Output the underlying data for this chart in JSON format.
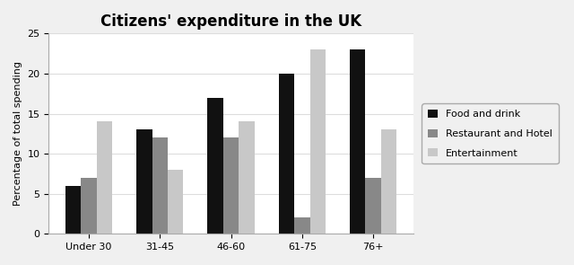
{
  "title": "Citizens' expenditure in the UK",
  "ylabel": "Percentage of total spending",
  "categories": [
    "Under 30",
    "31-45",
    "46-60",
    "61-75",
    "76+"
  ],
  "series": [
    {
      "label": "Food and drink",
      "values": [
        6,
        13,
        17,
        20,
        23
      ],
      "color": "#111111"
    },
    {
      "label": "Restaurant and Hotel",
      "values": [
        7,
        12,
        12,
        2,
        7
      ],
      "color": "#888888"
    },
    {
      "label": "Entertainment",
      "values": [
        14,
        8,
        14,
        23,
        13
      ],
      "color": "#c8c8c8"
    }
  ],
  "ylim": [
    0,
    25
  ],
  "yticks": [
    0,
    5,
    10,
    15,
    20,
    25
  ],
  "bar_width": 0.22,
  "background_color": "#f0f0f0",
  "plot_area_color": "#ffffff",
  "title_fontsize": 12,
  "label_fontsize": 8,
  "tick_fontsize": 8
}
